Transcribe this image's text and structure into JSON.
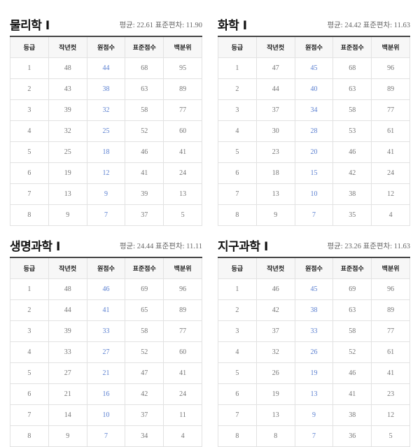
{
  "columns": [
    "등급",
    "작년컷",
    "원점수",
    "표준점수",
    "백분위"
  ],
  "accent_color": "#5a7fd0",
  "panels": [
    {
      "title": "물리학 Ⅰ",
      "stats": "평균: 22.61 표준편차: 11.90",
      "rows": [
        [
          "1",
          "48",
          "44",
          "68",
          "95"
        ],
        [
          "2",
          "43",
          "38",
          "63",
          "89"
        ],
        [
          "3",
          "39",
          "32",
          "58",
          "77"
        ],
        [
          "4",
          "32",
          "25",
          "52",
          "60"
        ],
        [
          "5",
          "25",
          "18",
          "46",
          "41"
        ],
        [
          "6",
          "19",
          "12",
          "41",
          "24"
        ],
        [
          "7",
          "13",
          "9",
          "39",
          "13"
        ],
        [
          "8",
          "9",
          "7",
          "37",
          "5"
        ]
      ]
    },
    {
      "title": "화학 Ⅰ",
      "stats": "평균: 24.42 표준편차: 11.63",
      "rows": [
        [
          "1",
          "47",
          "45",
          "68",
          "96"
        ],
        [
          "2",
          "44",
          "40",
          "63",
          "89"
        ],
        [
          "3",
          "37",
          "34",
          "58",
          "77"
        ],
        [
          "4",
          "30",
          "28",
          "53",
          "61"
        ],
        [
          "5",
          "23",
          "20",
          "46",
          "41"
        ],
        [
          "6",
          "18",
          "15",
          "42",
          "24"
        ],
        [
          "7",
          "13",
          "10",
          "38",
          "12"
        ],
        [
          "8",
          "9",
          "7",
          "35",
          "4"
        ]
      ]
    },
    {
      "title": "생명과학 Ⅰ",
      "stats": "평균: 24.44 표준편차: 11.11",
      "rows": [
        [
          "1",
          "48",
          "46",
          "69",
          "96"
        ],
        [
          "2",
          "44",
          "41",
          "65",
          "89"
        ],
        [
          "3",
          "39",
          "33",
          "58",
          "77"
        ],
        [
          "4",
          "33",
          "27",
          "52",
          "60"
        ],
        [
          "5",
          "27",
          "21",
          "47",
          "41"
        ],
        [
          "6",
          "21",
          "16",
          "42",
          "24"
        ],
        [
          "7",
          "14",
          "10",
          "37",
          "11"
        ],
        [
          "8",
          "9",
          "7",
          "34",
          "4"
        ]
      ]
    },
    {
      "title": "지구과학 Ⅰ",
      "stats": "평균: 23.26 표준편차: 11.63",
      "rows": [
        [
          "1",
          "46",
          "45",
          "69",
          "96"
        ],
        [
          "2",
          "42",
          "38",
          "63",
          "89"
        ],
        [
          "3",
          "37",
          "33",
          "58",
          "77"
        ],
        [
          "4",
          "32",
          "26",
          "52",
          "61"
        ],
        [
          "5",
          "26",
          "19",
          "46",
          "41"
        ],
        [
          "6",
          "19",
          "13",
          "41",
          "23"
        ],
        [
          "7",
          "13",
          "9",
          "38",
          "12"
        ],
        [
          "8",
          "8",
          "7",
          "36",
          "5"
        ]
      ]
    }
  ]
}
